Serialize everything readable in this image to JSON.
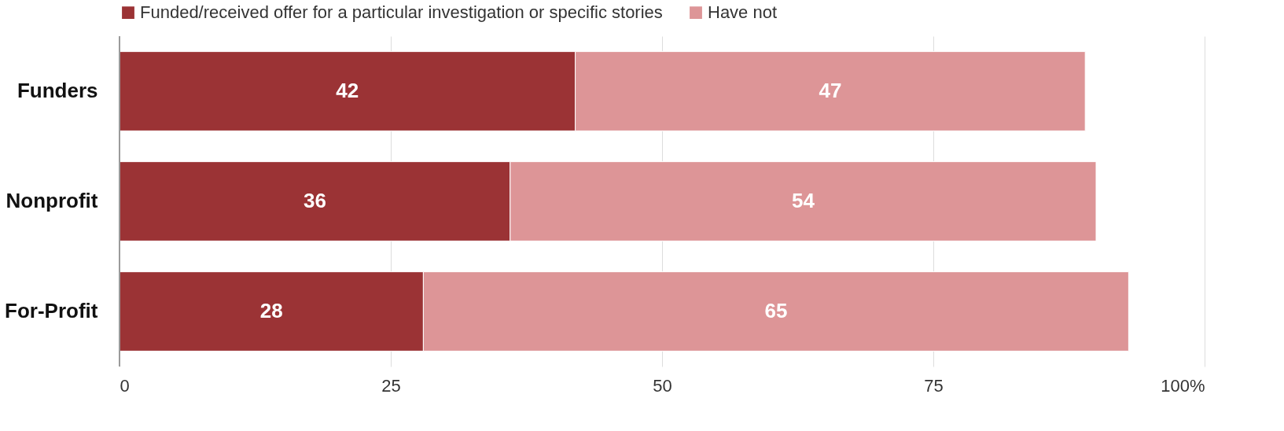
{
  "chart_data": {
    "type": "bar",
    "orientation": "horizontal",
    "stacked": true,
    "categories": [
      "Funders",
      "Nonprofit",
      "For-Profit"
    ],
    "series": [
      {
        "name": "Funded/received offer for a particular investigation or specific stories",
        "color": "#9b3335",
        "values": [
          42,
          36,
          28
        ]
      },
      {
        "name": "Have not",
        "color": "#dd9597",
        "values": [
          47,
          54,
          65
        ]
      }
    ],
    "xlim": [
      0,
      100
    ],
    "xticks": [
      0,
      25,
      50,
      75,
      {
        "value": 100,
        "label": "100%"
      }
    ],
    "grid": "x",
    "legend": "top",
    "data_labels": true
  }
}
